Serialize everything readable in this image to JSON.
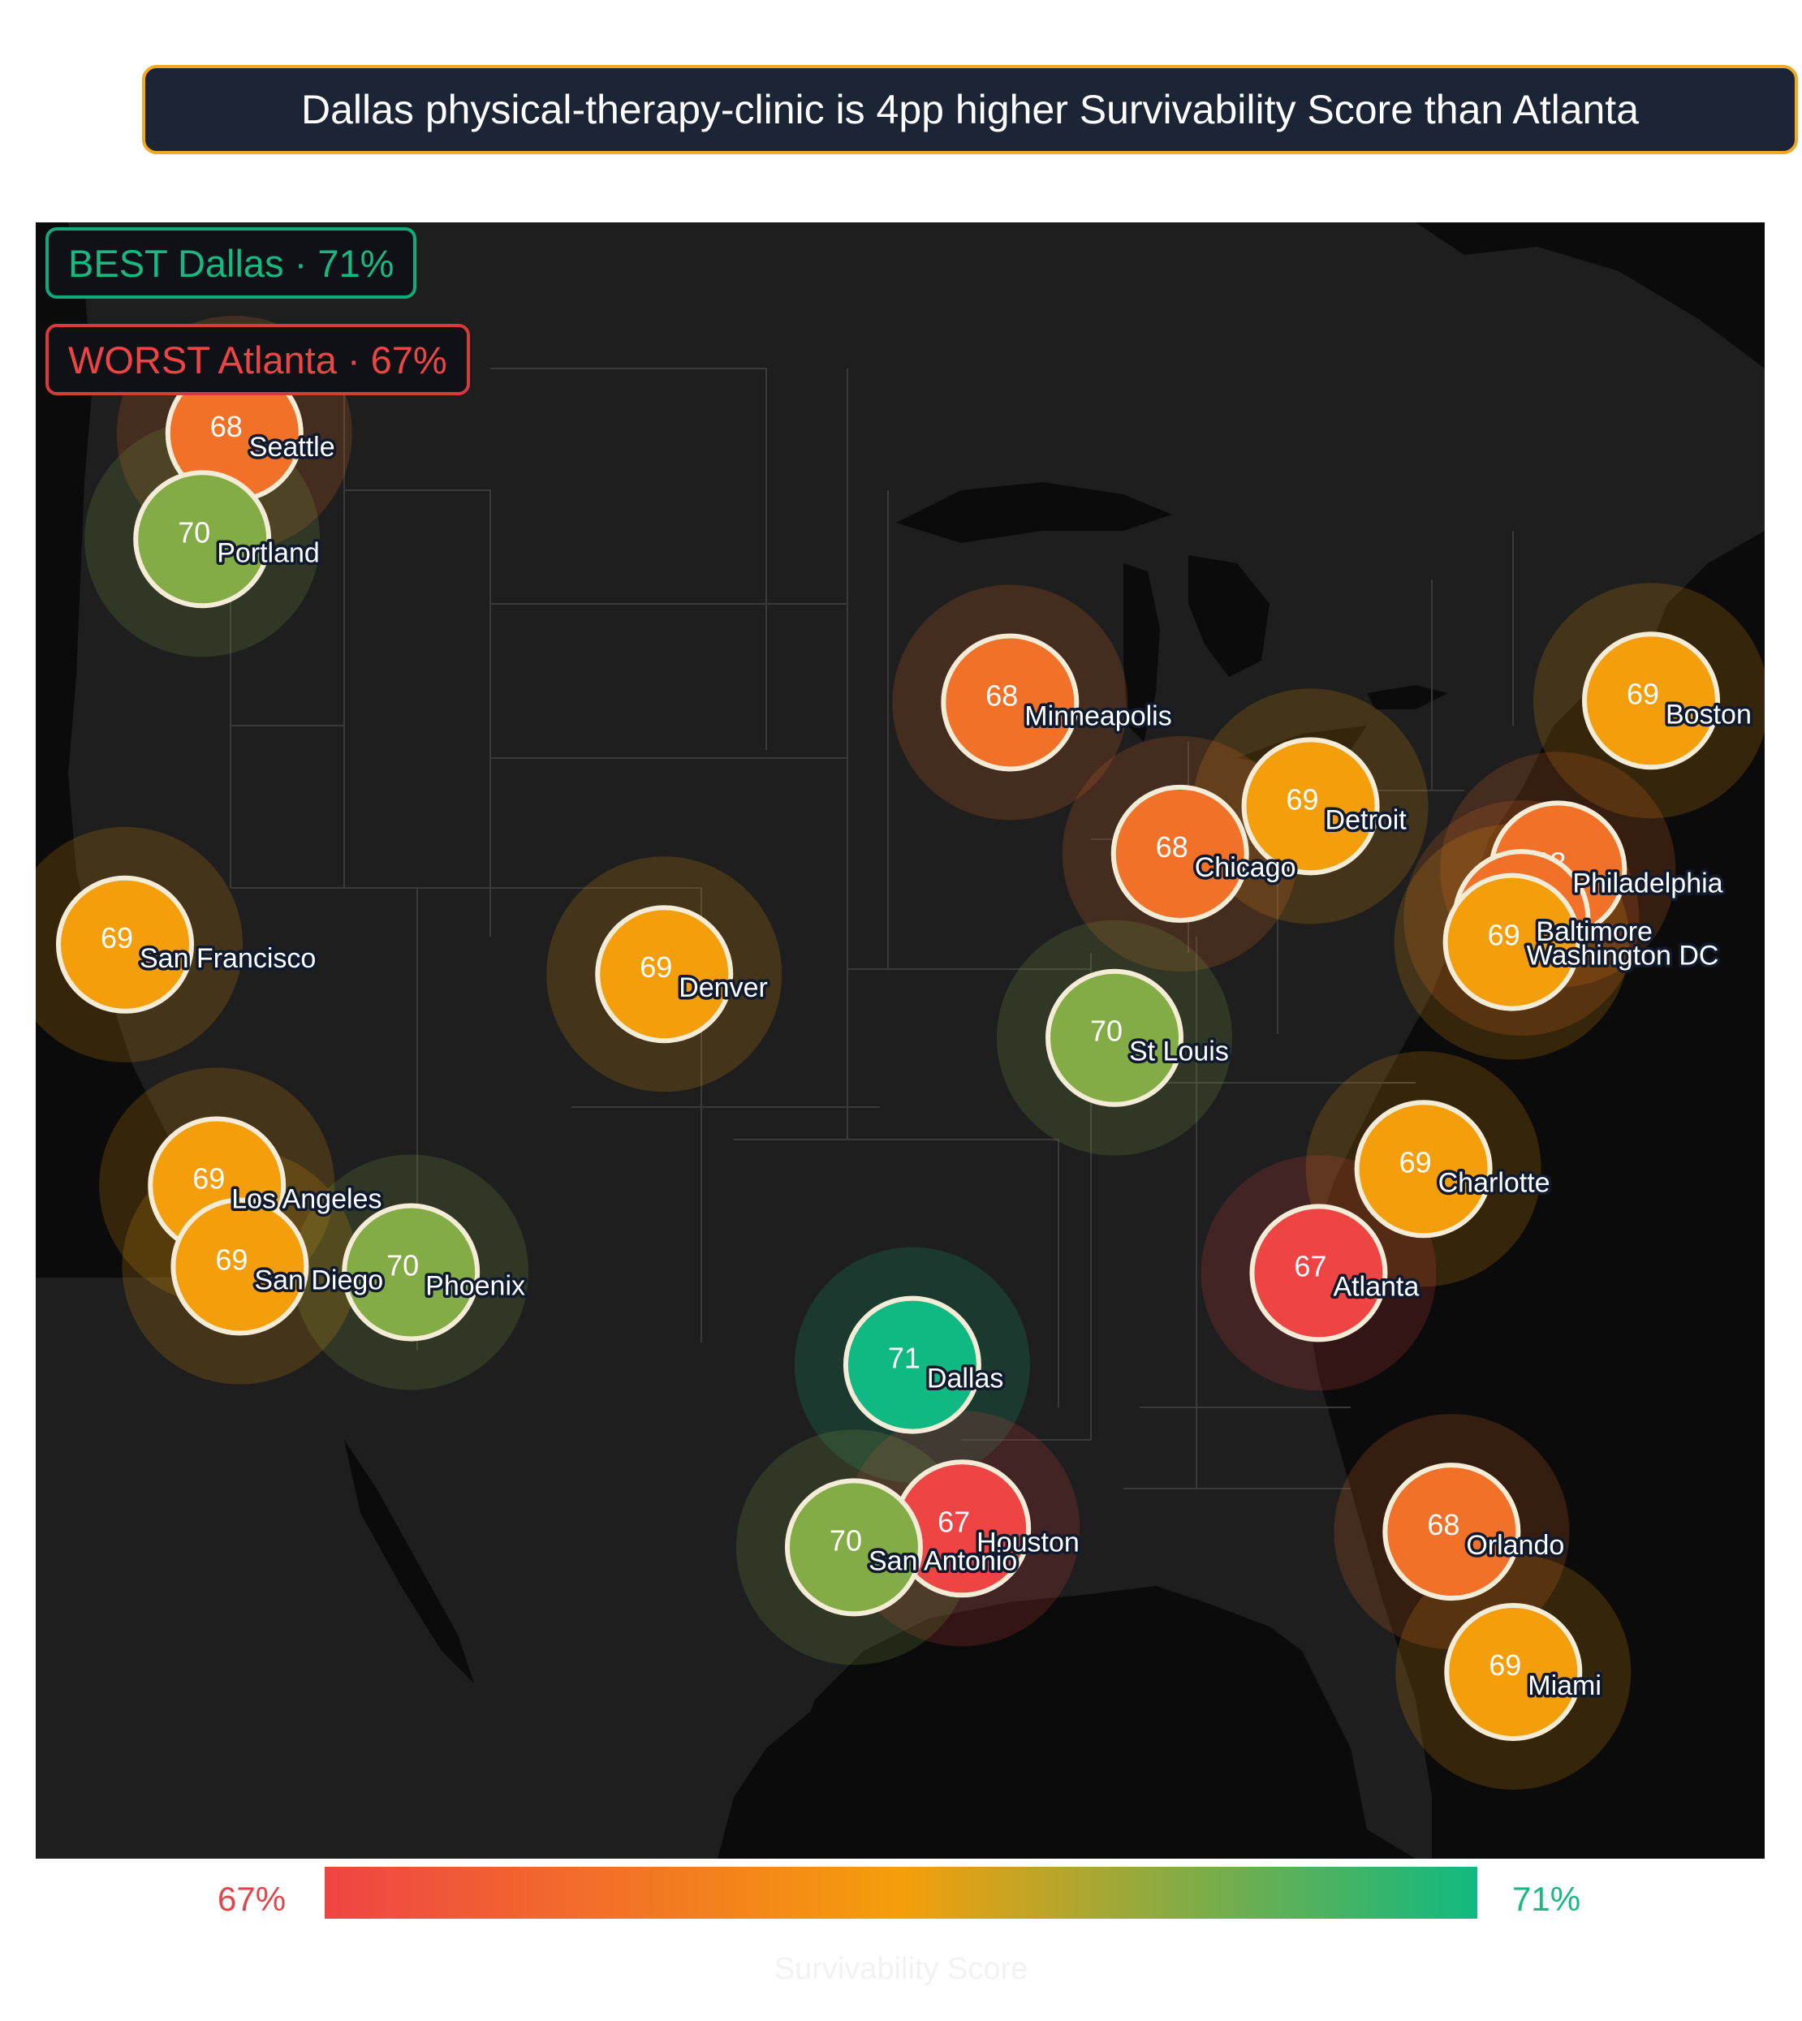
{
  "title": "Dallas physical-therapy-clinic is 4pp higher Survivability Score than Atlanta",
  "best": {
    "label": "BEST",
    "city": "Dallas",
    "value_text": "71%",
    "text": "BEST  Dallas · 71%"
  },
  "worst": {
    "label": "WORST",
    "city": "Atlanta",
    "value_text": "67%",
    "text": "WORST Atlanta · 67%"
  },
  "colorbar": {
    "min_label": "67%",
    "max_label": "71%",
    "title": "Survivability Score",
    "min": 67,
    "max": 71,
    "colors": [
      "#ef4444",
      "#f59e0b",
      "#10b981"
    ]
  },
  "map": {
    "projection": "albers-usa",
    "lon_range": [
      -125,
      -66
    ],
    "lat_range": [
      24,
      50
    ],
    "background": "#0b0b0b",
    "land_color": "#1e1e1e",
    "water_color": "#0b0b0b",
    "marker_outline": "#f5ecd8",
    "cities": [
      {
        "name": "Seattle",
        "lon": -122.33,
        "lat": 47.61,
        "score": 68,
        "score_text": "68"
      },
      {
        "name": "Portland",
        "lon": -122.68,
        "lat": 45.52,
        "score": 70,
        "score_text": "70"
      },
      {
        "name": "Minneapolis",
        "lon": -93.27,
        "lat": 44.98,
        "score": 68,
        "score_text": "68"
      },
      {
        "name": "Detroit",
        "lon": -83.05,
        "lat": 42.33,
        "score": 69,
        "score_text": "69"
      },
      {
        "name": "Chicago",
        "lon": -87.63,
        "lat": 41.88,
        "score": 68,
        "score_text": "68"
      },
      {
        "name": "Boston",
        "lon": -71.06,
        "lat": 42.36,
        "score": 69,
        "score_text": "69"
      },
      {
        "name": "Denver",
        "lon": -104.99,
        "lat": 39.74,
        "score": 69,
        "score_text": "69"
      },
      {
        "name": "Philadelphia",
        "lon": -75.17,
        "lat": 39.95,
        "score": 68,
        "score_text": "68"
      },
      {
        "name": "Baltimore",
        "lon": -76.61,
        "lat": 39.29,
        "score": 68,
        "score_text": "68"
      },
      {
        "name": "Washington DC",
        "lon": -77.04,
        "lat": 38.91,
        "score": 69,
        "score_text": "69"
      },
      {
        "name": "St Louis",
        "lon": -90.2,
        "lat": 38.63,
        "score": 70,
        "score_text": "70"
      },
      {
        "name": "San Francisco",
        "lon": -122.42,
        "lat": 37.77,
        "score": 69,
        "score_text": "69"
      },
      {
        "name": "Charlotte",
        "lon": -80.84,
        "lat": 35.23,
        "score": 69,
        "score_text": "69"
      },
      {
        "name": "Los Angeles",
        "lon": -118.24,
        "lat": 34.05,
        "score": 69,
        "score_text": "69"
      },
      {
        "name": "Phoenix",
        "lon": -112.07,
        "lat": 33.45,
        "score": 70,
        "score_text": "70"
      },
      {
        "name": "Atlanta",
        "lon": -84.39,
        "lat": 33.75,
        "score": 67,
        "score_text": "67"
      },
      {
        "name": "San Diego",
        "lon": -117.16,
        "lat": 32.72,
        "score": 69,
        "score_text": "69"
      },
      {
        "name": "Dallas",
        "lon": -96.8,
        "lat": 32.78,
        "score": 71,
        "score_text": "71"
      },
      {
        "name": "Houston",
        "lon": -95.37,
        "lat": 29.76,
        "score": 67,
        "score_text": "67"
      },
      {
        "name": "San Antonio",
        "lon": -98.49,
        "lat": 29.42,
        "score": 70,
        "score_text": "70"
      },
      {
        "name": "Orlando",
        "lon": -81.38,
        "lat": 28.54,
        "score": 68,
        "score_text": "68"
      },
      {
        "name": "Miami",
        "lon": -80.19,
        "lat": 25.76,
        "score": 69,
        "score_text": "69"
      }
    ]
  }
}
